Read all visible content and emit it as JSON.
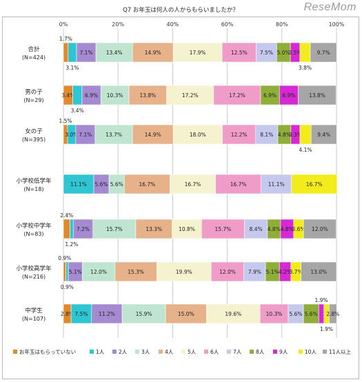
{
  "logo": "ReseMom",
  "chart_data": {
    "type": "bar",
    "orientation": "horizontal",
    "stacked": true,
    "normalized": true,
    "title": "Q7 お年玉は何人の人からもらいましたか？",
    "xlim": [
      0,
      100
    ],
    "xticks": [
      "0%",
      "20%",
      "40%",
      "60%",
      "80%",
      "100%"
    ],
    "legend_position": "bottom",
    "categories": [
      {
        "name": "合計",
        "n": "(N=424)"
      },
      {
        "name": "男の子",
        "n": "(N=29)"
      },
      {
        "name": "女の子",
        "n": "(N=395)"
      },
      {
        "name": "小学校低学年",
        "n": "(N=18)"
      },
      {
        "name": "小学校中学年",
        "n": "(N=83)"
      },
      {
        "name": "小学校高学年",
        "n": "(N=216)"
      },
      {
        "name": "中学生",
        "n": "(N=107)"
      }
    ],
    "series": [
      {
        "name": "お年玉はもらっていない",
        "color": "#e08a2c",
        "values": [
          1.7,
          3.4,
          1.5,
          0,
          2.4,
          0.9,
          2.8
        ]
      },
      {
        "name": "1人",
        "color": "#2fc6d4",
        "values": [
          3.1,
          3.4,
          3.0,
          11.1,
          1.2,
          0.9,
          7.5
        ]
      },
      {
        "name": "2人",
        "color": "#a58ad1",
        "values": [
          7.1,
          6.9,
          7.1,
          5.6,
          7.2,
          5.1,
          11.2
        ]
      },
      {
        "name": "3人",
        "color": "#bfe4cf",
        "values": [
          13.4,
          10.3,
          13.7,
          5.6,
          15.7,
          12.0,
          15.9
        ]
      },
      {
        "name": "4人",
        "color": "#e7b28a",
        "values": [
          14.9,
          13.8,
          14.9,
          16.7,
          13.3,
          15.3,
          15.0
        ]
      },
      {
        "name": "5人",
        "color": "#f5f3cf",
        "values": [
          17.9,
          17.2,
          18.0,
          16.7,
          10.8,
          19.9,
          19.6
        ]
      },
      {
        "name": "6人",
        "color": "#ef9cc9",
        "values": [
          12.5,
          17.2,
          12.2,
          16.7,
          15.7,
          12.0,
          10.3
        ]
      },
      {
        "name": "7人",
        "color": "#c6c9ee",
        "values": [
          7.5,
          0,
          8.1,
          11.1,
          8.4,
          7.9,
          5.6
        ]
      },
      {
        "name": "8人",
        "color": "#8fae38",
        "values": [
          5.0,
          6.9,
          4.8,
          0,
          4.8,
          5.1,
          5.6
        ]
      },
      {
        "name": "9人",
        "color": "#d52ad3",
        "values": [
          3.5,
          6.9,
          3.3,
          0,
          4.8,
          4.2,
          1.9
        ]
      },
      {
        "name": "10人",
        "color": "#f3ec1c",
        "values": [
          3.8,
          0,
          4.1,
          16.7,
          3.6,
          3.7,
          1.9
        ]
      },
      {
        "name": "11人以上",
        "color": "#a6a6a6",
        "values": [
          9.7,
          13.8,
          9.4,
          0,
          12.0,
          13.0,
          2.8
        ]
      }
    ],
    "labels": [
      [
        [
          "1.7%",
          "above"
        ],
        [
          "3.1%",
          "below"
        ],
        [
          "7.1%",
          "in"
        ],
        [
          "13.4%",
          "in"
        ],
        [
          "14.9%",
          "in"
        ],
        [
          "17.9%",
          "in"
        ],
        [
          "12.5%",
          "in"
        ],
        [
          "7.5%",
          "in"
        ],
        [
          "5.0%",
          "in"
        ],
        [
          "3.5%",
          "in"
        ],
        [
          "3.8%",
          "below"
        ],
        [
          "9.7%",
          "in"
        ]
      ],
      [
        [
          "3.4%",
          "in"
        ],
        [
          "3.4%",
          "below"
        ],
        [
          "6.9%",
          "in"
        ],
        [
          "10.3%",
          "in"
        ],
        [
          "13.8%",
          "in"
        ],
        [
          "17.2%",
          "in"
        ],
        [
          "17.2%",
          "in"
        ],
        null,
        [
          "6.9%",
          "in"
        ],
        [
          "6.9%",
          "in"
        ],
        null,
        [
          "13.8%",
          "in"
        ]
      ],
      [
        [
          "1.5%",
          "above"
        ],
        [
          "3.0%",
          "in"
        ],
        [
          "7.1%",
          "in"
        ],
        [
          "13.7%",
          "in"
        ],
        [
          "14.9%",
          "in"
        ],
        [
          "18.0%",
          "in"
        ],
        [
          "12.2%",
          "in"
        ],
        [
          "8.1%",
          "in"
        ],
        [
          "4.8%",
          "in"
        ],
        [
          "3.3%",
          "in"
        ],
        [
          "4.1%",
          "below"
        ],
        [
          "9.4%",
          "in"
        ]
      ],
      [
        null,
        [
          "11.1%",
          "in"
        ],
        [
          "5.6%",
          "in"
        ],
        [
          "5.6%",
          "in"
        ],
        [
          "16.7%",
          "in"
        ],
        [
          "16.7%",
          "in"
        ],
        [
          "16.7%",
          "in"
        ],
        [
          "11.1%",
          "in"
        ],
        null,
        null,
        [
          "16.7%",
          "in"
        ],
        null
      ],
      [
        [
          "2.4%",
          "above"
        ],
        [
          "1.2%",
          "below"
        ],
        [
          "7.2%",
          "in"
        ],
        [
          "15.7%",
          "in"
        ],
        [
          "13.3%",
          "in"
        ],
        [
          "10.8%",
          "in"
        ],
        [
          "15.7%",
          "in"
        ],
        [
          "8.4%",
          "in"
        ],
        [
          "4.8%",
          "in"
        ],
        [
          "4.8%",
          "in"
        ],
        [
          "3.6%",
          "in"
        ],
        [
          "12.0%",
          "in"
        ]
      ],
      [
        [
          "0.9%",
          "above"
        ],
        [
          "0.9%",
          "below"
        ],
        [
          "5.1%",
          "in"
        ],
        [
          "12.0%",
          "in"
        ],
        [
          "15.3%",
          "in"
        ],
        [
          "19.9%",
          "in"
        ],
        [
          "12.0%",
          "in"
        ],
        [
          "7.9%",
          "in"
        ],
        [
          "5.1%",
          "in"
        ],
        [
          "4.2%",
          "in"
        ],
        [
          "3.7%",
          "in"
        ],
        [
          "13.0%",
          "in"
        ]
      ],
      [
        [
          "2.8%",
          "in"
        ],
        [
          "7.5%",
          "in"
        ],
        [
          "11.2%",
          "in"
        ],
        [
          "15.9%",
          "in"
        ],
        [
          "15.0%",
          "in"
        ],
        [
          "19.6%",
          "in"
        ],
        [
          "10.3%",
          "in"
        ],
        [
          "5.6%",
          "in"
        ],
        [
          "5.6%",
          "in"
        ],
        [
          "1.9%",
          "above"
        ],
        [
          "1.9%",
          "below"
        ],
        [
          "2.8%",
          "in"
        ]
      ]
    ]
  }
}
